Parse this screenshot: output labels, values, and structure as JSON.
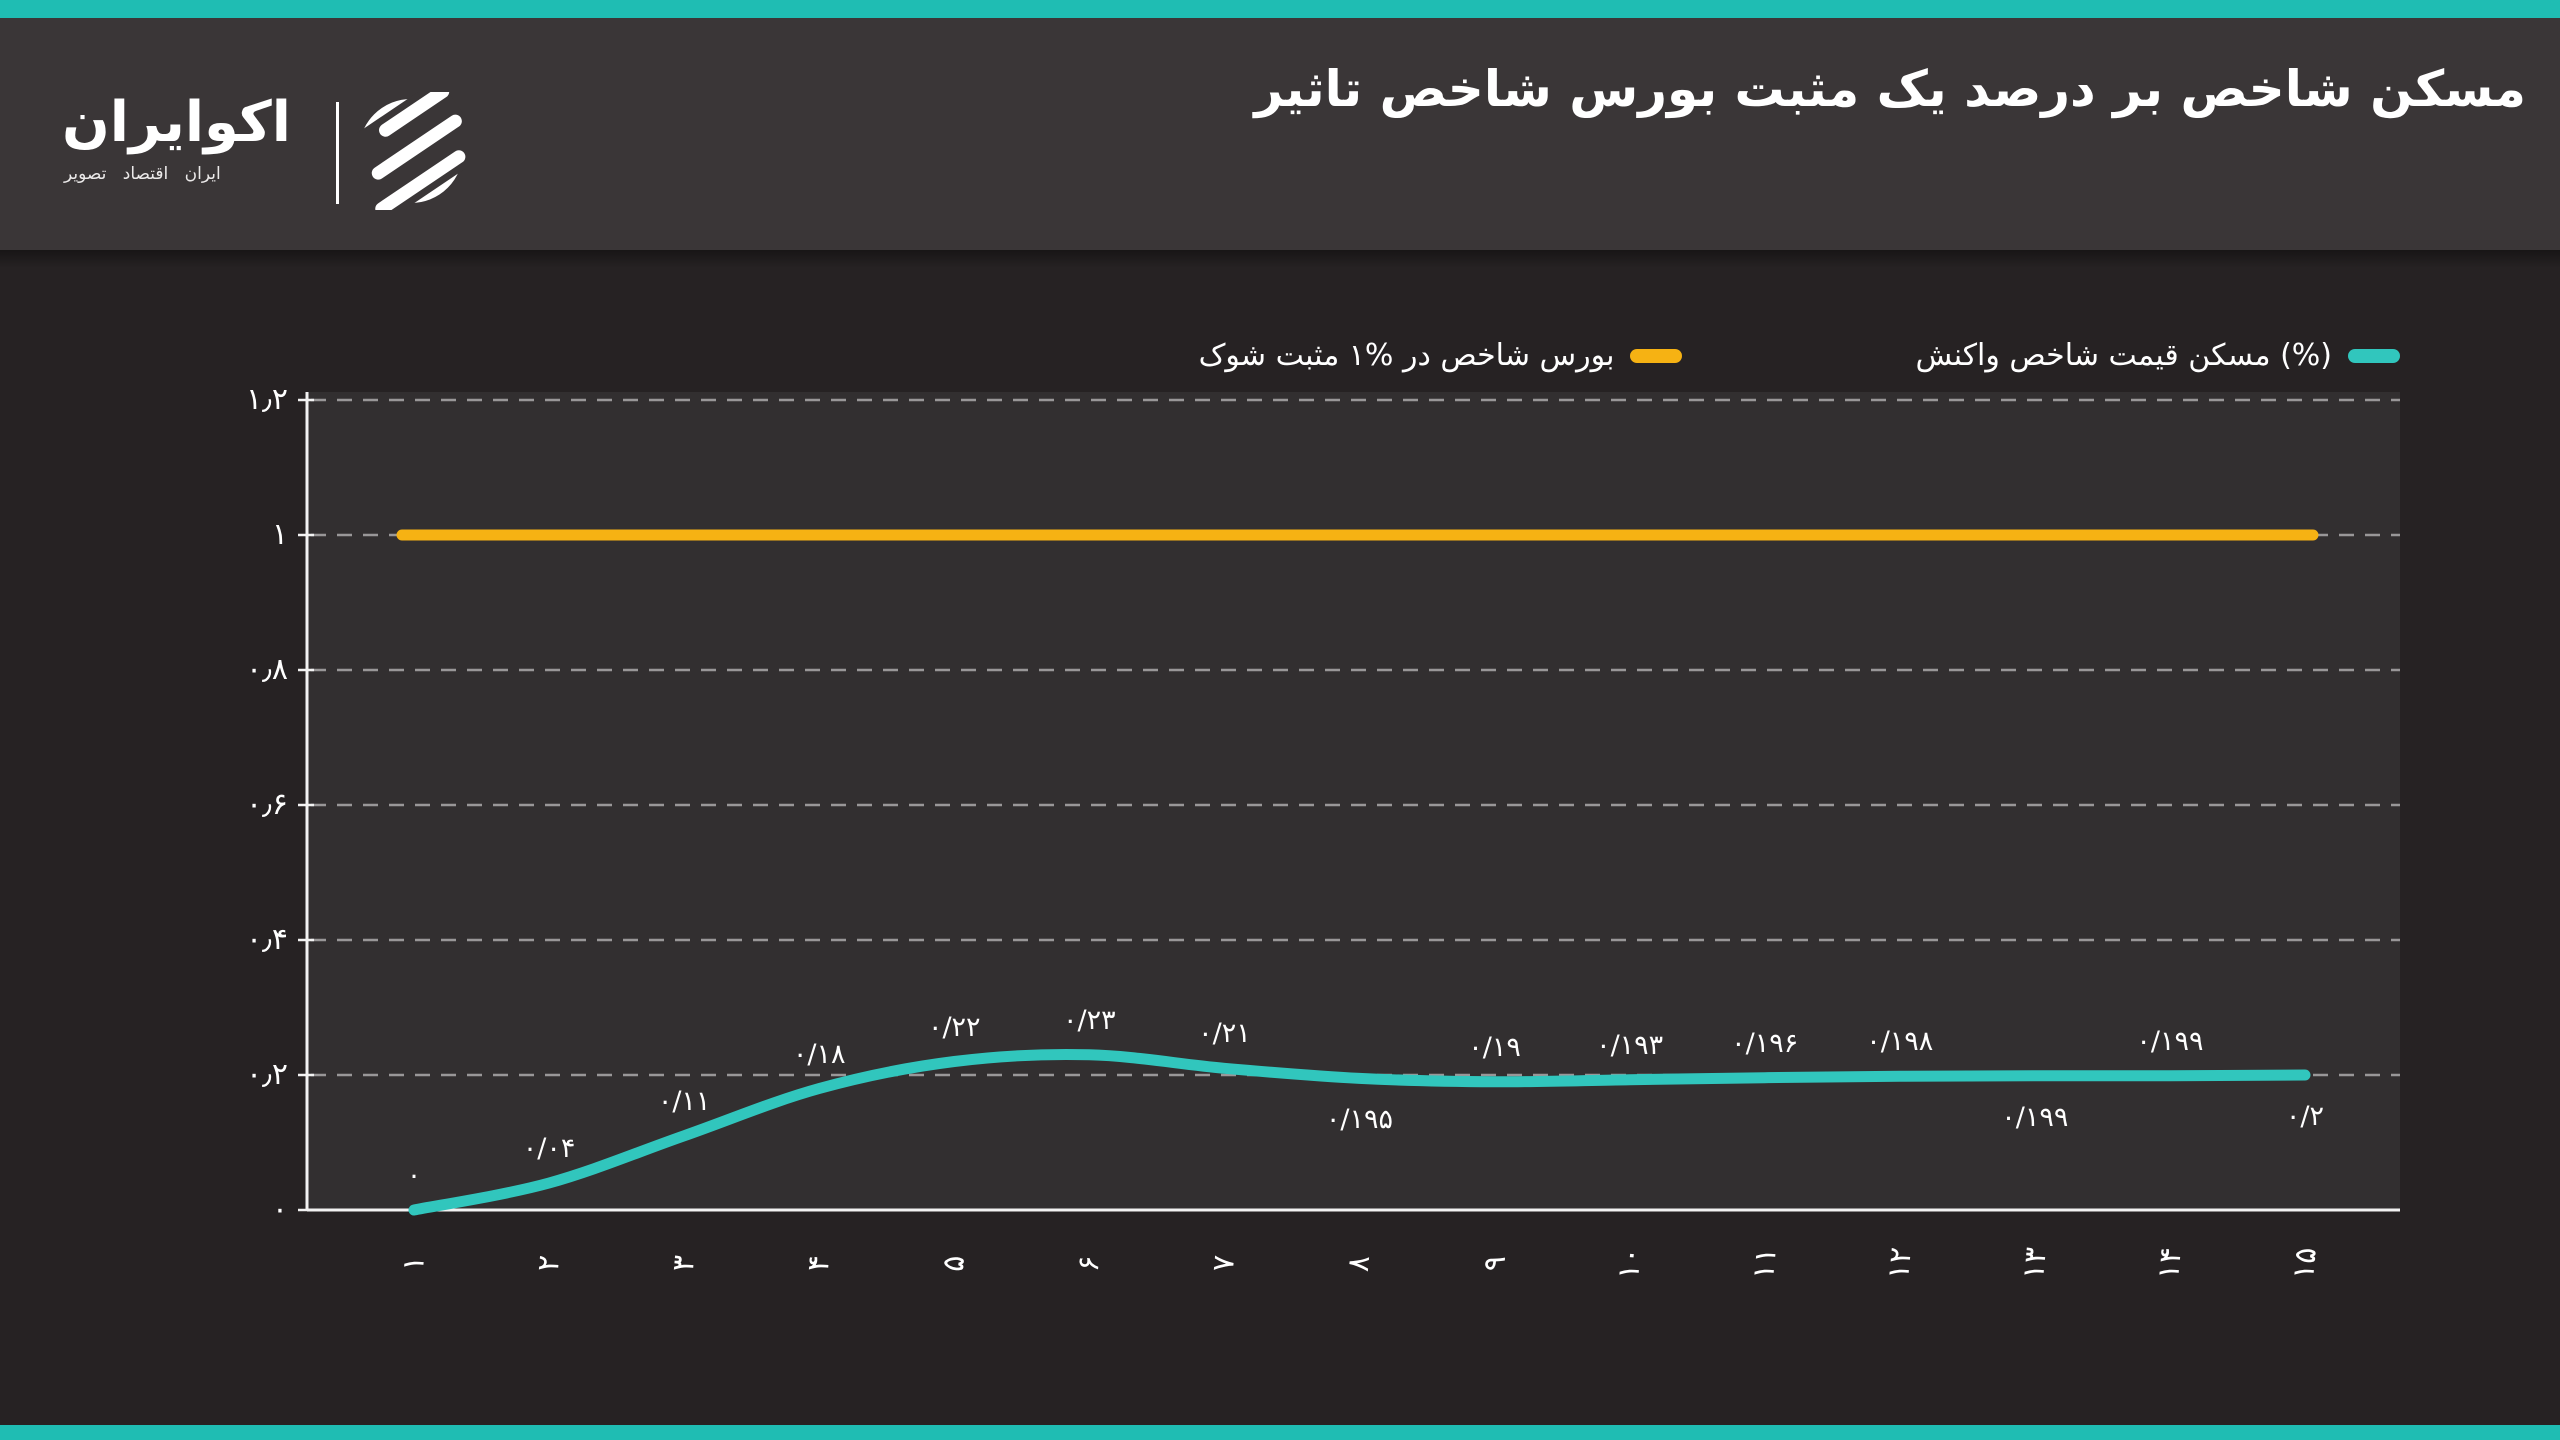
{
  "colors": {
    "accent_teal": "#1fbdb3",
    "series_teal": "#31c6bd",
    "series_yellow": "#f6b213",
    "header_bg": "#3a3637",
    "body_bg": "#262223",
    "plot_bg": "#322f30"
  },
  "header": {
    "title": "تاثیر‎ شاخص‎ بورس‎ مثبت‎ یک‎ درصد‎ بر‎ شاخص‎ مسکن",
    "logo": {
      "wordmark": "اکوایران",
      "subtitle": "تصویر‎ اقتصاد‎ ایران"
    }
  },
  "legend": [
    {
      "label": "شوک‎ مثبت‎ ۱%‎ در‎ شاخص‎ بورس",
      "color": "#f6b213"
    },
    {
      "label": "واکنش‎ شاخص‎ قیمت‎ مسکن‎ (%)",
      "color": "#31c6bd"
    }
  ],
  "chart_data": {
    "type": "line",
    "title": "تاثیر شاخص بورس مثبت یک درصد بر شاخص مسکن",
    "x": [
      1,
      2,
      3,
      4,
      5,
      6,
      7,
      8,
      9,
      10,
      11,
      12,
      13,
      14,
      15
    ],
    "x_tick_labels": [
      "۱",
      "۲",
      "۳",
      "۴",
      "۵",
      "۶",
      "۷",
      "۸",
      "۹",
      "۱۰",
      "۱۱",
      "۱۲",
      "۱۳",
      "۱۴",
      "۱۵"
    ],
    "ylim": [
      0,
      1.2
    ],
    "y_ticks": [
      0,
      0.2,
      0.4,
      0.6,
      0.8,
      1,
      1.2
    ],
    "y_tick_labels": [
      "۰",
      "۰٫۲",
      "۰٫۴",
      "۰٫۶",
      "۰٫۸",
      "۱",
      "۱٫۲"
    ],
    "grid": "dashed horizontal gridlines, dark background",
    "legend_position": "top",
    "series": [
      {
        "name": "واکنش شاخص قیمت مسکن (%)",
        "color": "#31c6bd",
        "values": [
          0,
          0.04,
          0.11,
          0.18,
          0.22,
          0.23,
          0.21,
          0.195,
          0.19,
          0.193,
          0.196,
          0.198,
          0.199,
          0.199,
          0.2
        ],
        "data_labels": [
          "۰",
          "۰/۰۴",
          "۰/۱۱",
          "۰/۱۸",
          "۰/۲۲",
          "۰/۲۳",
          "۰/۲۱",
          "۰/۱۹۵",
          "۰/۱۹",
          "۰/۱۹۳",
          "۰/۱۹۶",
          "۰/۱۹۸",
          "۰/۱۹۹",
          "۰/۱۹۹",
          "۰/۲"
        ],
        "label_side": [
          "above",
          "above",
          "above",
          "above",
          "above",
          "above",
          "above",
          "below",
          "above",
          "above",
          "above",
          "above",
          "below",
          "above",
          "below"
        ]
      },
      {
        "name": "شوک مثبت ۱% در شاخص بورس",
        "color": "#f6b213",
        "values": [
          1,
          1,
          1,
          1,
          1,
          1,
          1,
          1,
          1,
          1,
          1,
          1,
          1,
          1,
          1
        ],
        "data_labels": []
      }
    ]
  }
}
